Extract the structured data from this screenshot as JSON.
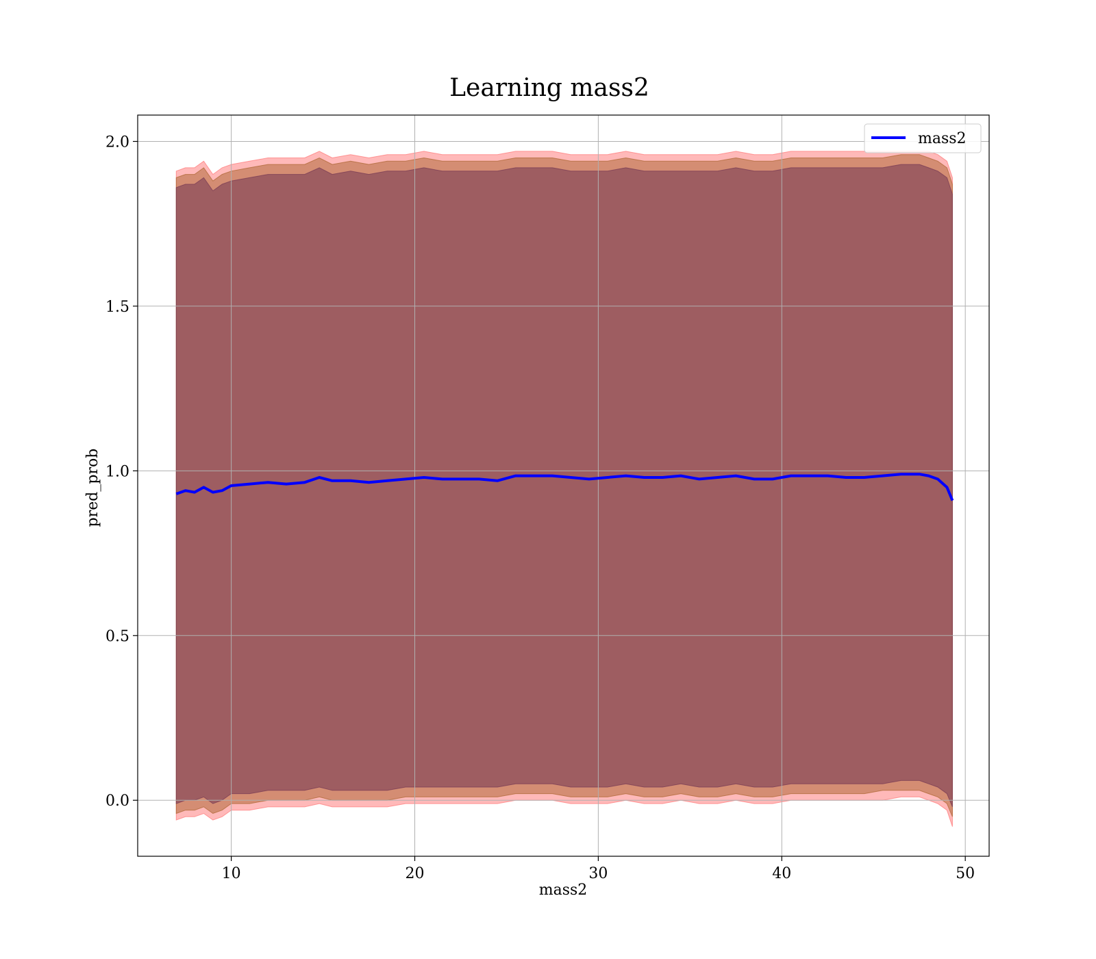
{
  "chart_data": {
    "type": "line",
    "title": "Learning mass2",
    "xlabel": "mass2",
    "ylabel": "pred_prob",
    "xlim": [
      4.9,
      51.3
    ],
    "ylim": [
      -0.17,
      2.08
    ],
    "xticks": [
      10,
      20,
      30,
      40,
      50
    ],
    "yticks": [
      0.0,
      0.5,
      1.0,
      1.5,
      2.0
    ],
    "xtick_labels": [
      "10",
      "20",
      "30",
      "40",
      "50"
    ],
    "ytick_labels": [
      "0.0",
      "0.5",
      "1.0",
      "1.5",
      "2.0"
    ],
    "grid": true,
    "legend": {
      "position": "top-right",
      "entries": [
        "mass2"
      ]
    },
    "series": [
      {
        "name": "mass2",
        "color": "#0000ff",
        "x": [
          7.0,
          7.5,
          8.0,
          8.5,
          9.0,
          9.5,
          10.0,
          11.0,
          12.0,
          13.0,
          14.0,
          14.8,
          15.5,
          16.5,
          17.5,
          18.5,
          19.5,
          20.5,
          21.5,
          22.5,
          23.5,
          24.5,
          25.5,
          26.5,
          27.5,
          28.5,
          29.5,
          30.5,
          31.5,
          32.5,
          33.5,
          34.5,
          35.5,
          36.5,
          37.5,
          38.5,
          39.5,
          40.5,
          41.5,
          42.5,
          43.5,
          44.5,
          45.5,
          46.5,
          47.5,
          48.0,
          48.5,
          49.0,
          49.3
        ],
        "y": [
          0.93,
          0.94,
          0.935,
          0.95,
          0.935,
          0.94,
          0.955,
          0.96,
          0.965,
          0.96,
          0.965,
          0.98,
          0.97,
          0.97,
          0.965,
          0.97,
          0.975,
          0.98,
          0.975,
          0.975,
          0.975,
          0.97,
          0.985,
          0.985,
          0.985,
          0.98,
          0.975,
          0.98,
          0.985,
          0.98,
          0.98,
          0.985,
          0.975,
          0.98,
          0.985,
          0.975,
          0.975,
          0.985,
          0.985,
          0.985,
          0.98,
          0.98,
          0.985,
          0.99,
          0.99,
          0.985,
          0.975,
          0.95,
          0.91
        ]
      }
    ],
    "bands": [
      {
        "color": "#ff7f7f",
        "opacity": 0.55,
        "x": [
          7.0,
          7.5,
          8.0,
          8.5,
          9.0,
          9.5,
          10.0,
          11.0,
          12.0,
          13.0,
          14.0,
          14.8,
          15.5,
          16.5,
          17.5,
          18.5,
          19.5,
          20.5,
          21.5,
          22.5,
          23.5,
          24.5,
          25.5,
          26.5,
          27.5,
          28.5,
          29.5,
          30.5,
          31.5,
          32.5,
          33.5,
          34.5,
          35.5,
          36.5,
          37.5,
          38.5,
          39.5,
          40.5,
          41.5,
          42.5,
          43.5,
          44.5,
          45.5,
          46.5,
          47.5,
          48.0,
          48.5,
          49.0,
          49.3
        ],
        "lower": [
          -0.06,
          -0.05,
          -0.05,
          -0.04,
          -0.06,
          -0.05,
          -0.03,
          -0.03,
          -0.02,
          -0.02,
          -0.02,
          -0.01,
          -0.02,
          -0.02,
          -0.02,
          -0.02,
          -0.01,
          -0.01,
          -0.01,
          -0.01,
          -0.01,
          -0.01,
          0.0,
          0.0,
          0.0,
          -0.01,
          -0.01,
          -0.01,
          0.0,
          -0.01,
          -0.01,
          0.0,
          -0.01,
          -0.01,
          0.0,
          -0.01,
          -0.01,
          0.0,
          0.0,
          0.0,
          0.0,
          0.0,
          0.0,
          0.01,
          0.01,
          0.0,
          -0.01,
          -0.03,
          -0.08
        ],
        "upper": [
          1.91,
          1.92,
          1.92,
          1.94,
          1.9,
          1.92,
          1.93,
          1.94,
          1.95,
          1.95,
          1.95,
          1.97,
          1.95,
          1.96,
          1.95,
          1.96,
          1.96,
          1.97,
          1.96,
          1.96,
          1.96,
          1.96,
          1.97,
          1.97,
          1.97,
          1.96,
          1.96,
          1.96,
          1.97,
          1.96,
          1.96,
          1.96,
          1.96,
          1.96,
          1.97,
          1.96,
          1.96,
          1.97,
          1.97,
          1.97,
          1.97,
          1.97,
          1.97,
          1.97,
          1.97,
          1.97,
          1.96,
          1.94,
          1.89
        ]
      },
      {
        "color": "#b06a3a",
        "opacity": 0.55,
        "x": [
          7.0,
          7.5,
          8.0,
          8.5,
          9.0,
          9.5,
          10.0,
          11.0,
          12.0,
          13.0,
          14.0,
          14.8,
          15.5,
          16.5,
          17.5,
          18.5,
          19.5,
          20.5,
          21.5,
          22.5,
          23.5,
          24.5,
          25.5,
          26.5,
          27.5,
          28.5,
          29.5,
          30.5,
          31.5,
          32.5,
          33.5,
          34.5,
          35.5,
          36.5,
          37.5,
          38.5,
          39.5,
          40.5,
          41.5,
          42.5,
          43.5,
          44.5,
          45.5,
          46.5,
          47.5,
          48.0,
          48.5,
          49.0,
          49.3
        ],
        "lower": [
          -0.04,
          -0.03,
          -0.03,
          -0.02,
          -0.04,
          -0.03,
          -0.01,
          -0.01,
          0.0,
          0.0,
          0.0,
          0.01,
          0.0,
          0.0,
          0.0,
          0.0,
          0.01,
          0.01,
          0.01,
          0.01,
          0.01,
          0.01,
          0.02,
          0.02,
          0.02,
          0.01,
          0.01,
          0.01,
          0.02,
          0.01,
          0.01,
          0.02,
          0.01,
          0.01,
          0.02,
          0.01,
          0.01,
          0.02,
          0.02,
          0.02,
          0.02,
          0.02,
          0.03,
          0.03,
          0.03,
          0.02,
          0.01,
          -0.01,
          -0.05
        ],
        "upper": [
          1.89,
          1.9,
          1.9,
          1.92,
          1.88,
          1.9,
          1.91,
          1.92,
          1.93,
          1.93,
          1.93,
          1.95,
          1.93,
          1.94,
          1.93,
          1.94,
          1.94,
          1.95,
          1.94,
          1.94,
          1.94,
          1.94,
          1.95,
          1.95,
          1.95,
          1.94,
          1.94,
          1.94,
          1.95,
          1.94,
          1.94,
          1.94,
          1.94,
          1.94,
          1.95,
          1.94,
          1.94,
          1.95,
          1.95,
          1.95,
          1.95,
          1.95,
          1.95,
          1.96,
          1.96,
          1.95,
          1.94,
          1.92,
          1.87
        ]
      },
      {
        "color": "#7a3d55",
        "opacity": 0.6,
        "x": [
          7.0,
          7.5,
          8.0,
          8.5,
          9.0,
          9.5,
          10.0,
          11.0,
          12.0,
          13.0,
          14.0,
          14.8,
          15.5,
          16.5,
          17.5,
          18.5,
          19.5,
          20.5,
          21.5,
          22.5,
          23.5,
          24.5,
          25.5,
          26.5,
          27.5,
          28.5,
          29.5,
          30.5,
          31.5,
          32.5,
          33.5,
          34.5,
          35.5,
          36.5,
          37.5,
          38.5,
          39.5,
          40.5,
          41.5,
          42.5,
          43.5,
          44.5,
          45.5,
          46.5,
          47.5,
          48.0,
          48.5,
          49.0,
          49.3
        ],
        "lower": [
          -0.01,
          0.0,
          0.0,
          0.01,
          -0.01,
          0.0,
          0.02,
          0.02,
          0.03,
          0.03,
          0.03,
          0.04,
          0.03,
          0.03,
          0.03,
          0.03,
          0.04,
          0.04,
          0.04,
          0.04,
          0.04,
          0.04,
          0.05,
          0.05,
          0.05,
          0.04,
          0.04,
          0.04,
          0.05,
          0.04,
          0.04,
          0.05,
          0.04,
          0.04,
          0.05,
          0.04,
          0.04,
          0.05,
          0.05,
          0.05,
          0.05,
          0.05,
          0.05,
          0.06,
          0.06,
          0.05,
          0.04,
          0.02,
          -0.02
        ],
        "upper": [
          1.86,
          1.87,
          1.87,
          1.89,
          1.85,
          1.87,
          1.88,
          1.89,
          1.9,
          1.9,
          1.9,
          1.92,
          1.9,
          1.91,
          1.9,
          1.91,
          1.91,
          1.92,
          1.91,
          1.91,
          1.91,
          1.91,
          1.92,
          1.92,
          1.92,
          1.91,
          1.91,
          1.91,
          1.92,
          1.91,
          1.91,
          1.91,
          1.91,
          1.91,
          1.92,
          1.91,
          1.91,
          1.92,
          1.92,
          1.92,
          1.92,
          1.92,
          1.92,
          1.93,
          1.93,
          1.92,
          1.91,
          1.89,
          1.84
        ]
      }
    ]
  }
}
